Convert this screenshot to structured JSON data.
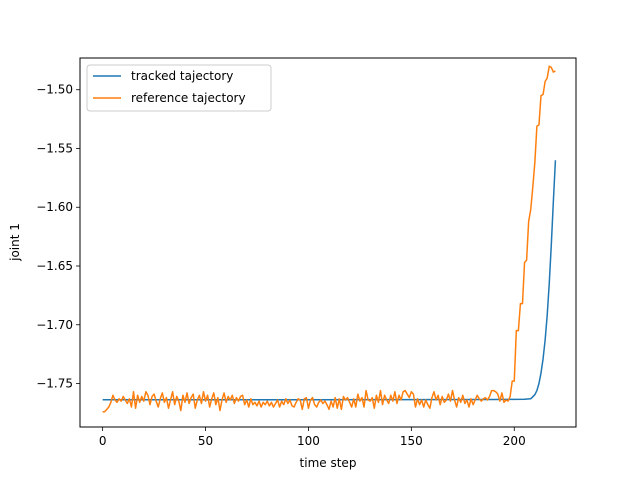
{
  "chart_data": {
    "type": "line",
    "title": "",
    "xlabel": "time step",
    "ylabel": "joint 1",
    "xlim": [
      -11,
      230
    ],
    "ylim": [
      -1.787,
      -1.473
    ],
    "xticks": [
      0,
      50,
      100,
      150,
      200
    ],
    "xtick_labels": [
      "0",
      "50",
      "100",
      "150",
      "200"
    ],
    "yticks": [
      -1.75,
      -1.7,
      -1.65,
      -1.6,
      -1.55,
      -1.5
    ],
    "ytick_labels": [
      "−1.75",
      "−1.70",
      "−1.65",
      "−1.60",
      "−1.55",
      "−1.50"
    ],
    "grid": false,
    "legend_position": "top-left",
    "series": [
      {
        "name": "tracked tajectory",
        "color": "#1f77b4",
        "points": [
          [
            0,
            -1.7638
          ],
          [
            50,
            -1.7638
          ],
          [
            100,
            -1.7638
          ],
          [
            150,
            -1.7637
          ],
          [
            190,
            -1.7636
          ],
          [
            200,
            -1.7635
          ],
          [
            205,
            -1.7634
          ],
          [
            208,
            -1.763
          ],
          [
            210,
            -1.7595
          ],
          [
            211,
            -1.756
          ],
          [
            212,
            -1.75
          ],
          [
            213,
            -1.741
          ],
          [
            214,
            -1.729
          ],
          [
            215,
            -1.713
          ],
          [
            216,
            -1.692
          ],
          [
            217,
            -1.665
          ],
          [
            218,
            -1.632
          ],
          [
            219,
            -1.595
          ],
          [
            220,
            -1.56
          ]
        ]
      },
      {
        "name": "reference tajectory",
        "color": "#ff7f0e",
        "points": [
          [
            0,
            -1.774
          ],
          [
            1,
            -1.774
          ],
          [
            2,
            -1.772
          ],
          [
            3,
            -1.77
          ],
          [
            4,
            -1.766
          ],
          [
            5,
            -1.76
          ],
          [
            6,
            -1.764
          ],
          [
            7,
            -1.766
          ],
          [
            8,
            -1.763
          ],
          [
            9,
            -1.765
          ],
          [
            10,
            -1.761
          ],
          [
            11,
            -1.764
          ],
          [
            12,
            -1.767
          ],
          [
            13,
            -1.763
          ],
          [
            14,
            -1.77
          ],
          [
            15,
            -1.757
          ],
          [
            16,
            -1.771
          ],
          [
            17,
            -1.76
          ],
          [
            18,
            -1.766
          ],
          [
            19,
            -1.761
          ],
          [
            20,
            -1.765
          ],
          [
            21,
            -1.757
          ],
          [
            22,
            -1.76
          ],
          [
            23,
            -1.768
          ],
          [
            24,
            -1.761
          ],
          [
            25,
            -1.759
          ],
          [
            26,
            -1.765
          ],
          [
            27,
            -1.77
          ],
          [
            28,
            -1.763
          ],
          [
            29,
            -1.758
          ],
          [
            30,
            -1.766
          ],
          [
            31,
            -1.762
          ],
          [
            32,
            -1.771
          ],
          [
            33,
            -1.764
          ],
          [
            34,
            -1.757
          ],
          [
            35,
            -1.768
          ],
          [
            36,
            -1.761
          ],
          [
            37,
            -1.765
          ],
          [
            38,
            -1.773
          ],
          [
            39,
            -1.76
          ],
          [
            40,
            -1.766
          ],
          [
            41,
            -1.758
          ],
          [
            42,
            -1.767
          ],
          [
            43,
            -1.762
          ],
          [
            44,
            -1.759
          ],
          [
            45,
            -1.771
          ],
          [
            46,
            -1.764
          ],
          [
            47,
            -1.76
          ],
          [
            48,
            -1.767
          ],
          [
            49,
            -1.757
          ],
          [
            50,
            -1.765
          ],
          [
            51,
            -1.76
          ],
          [
            52,
            -1.77
          ],
          [
            53,
            -1.763
          ],
          [
            54,
            -1.758
          ],
          [
            55,
            -1.768
          ],
          [
            56,
            -1.762
          ],
          [
            57,
            -1.773
          ],
          [
            58,
            -1.764
          ],
          [
            59,
            -1.758
          ],
          [
            60,
            -1.766
          ],
          [
            61,
            -1.761
          ],
          [
            62,
            -1.764
          ],
          [
            63,
            -1.76
          ],
          [
            64,
            -1.767
          ],
          [
            65,
            -1.762
          ],
          [
            66,
            -1.765
          ],
          [
            67,
            -1.761
          ],
          [
            68,
            -1.76
          ],
          [
            69,
            -1.768
          ],
          [
            70,
            -1.764
          ],
          [
            71,
            -1.77
          ],
          [
            72,
            -1.763
          ],
          [
            73,
            -1.768
          ],
          [
            74,
            -1.766
          ],
          [
            75,
            -1.769
          ],
          [
            76,
            -1.765
          ],
          [
            77,
            -1.77
          ],
          [
            78,
            -1.766
          ],
          [
            79,
            -1.768
          ],
          [
            80,
            -1.765
          ],
          [
            81,
            -1.769
          ],
          [
            82,
            -1.766
          ],
          [
            83,
            -1.77
          ],
          [
            84,
            -1.767
          ],
          [
            85,
            -1.764
          ],
          [
            86,
            -1.77
          ],
          [
            87,
            -1.765
          ],
          [
            88,
            -1.768
          ],
          [
            89,
            -1.763
          ],
          [
            90,
            -1.767
          ],
          [
            91,
            -1.764
          ],
          [
            92,
            -1.769
          ],
          [
            93,
            -1.77
          ],
          [
            94,
            -1.766
          ],
          [
            95,
            -1.763
          ],
          [
            96,
            -1.764
          ],
          [
            97,
            -1.772
          ],
          [
            98,
            -1.763
          ],
          [
            99,
            -1.762
          ],
          [
            100,
            -1.771
          ],
          [
            101,
            -1.764
          ],
          [
            102,
            -1.762
          ],
          [
            103,
            -1.768
          ],
          [
            104,
            -1.77
          ],
          [
            105,
            -1.766
          ],
          [
            106,
            -1.764
          ],
          [
            107,
            -1.767
          ],
          [
            108,
            -1.765
          ],
          [
            109,
            -1.768
          ],
          [
            110,
            -1.772
          ],
          [
            111,
            -1.765
          ],
          [
            112,
            -1.77
          ],
          [
            113,
            -1.762
          ],
          [
            114,
            -1.771
          ],
          [
            115,
            -1.763
          ],
          [
            116,
            -1.772
          ],
          [
            117,
            -1.761
          ],
          [
            118,
            -1.764
          ],
          [
            119,
            -1.762
          ],
          [
            120,
            -1.766
          ],
          [
            121,
            -1.77
          ],
          [
            122,
            -1.763
          ],
          [
            123,
            -1.77
          ],
          [
            124,
            -1.759
          ],
          [
            125,
            -1.765
          ],
          [
            126,
            -1.762
          ],
          [
            127,
            -1.77
          ],
          [
            128,
            -1.756
          ],
          [
            129,
            -1.764
          ],
          [
            130,
            -1.765
          ],
          [
            131,
            -1.762
          ],
          [
            132,
            -1.771
          ],
          [
            133,
            -1.76
          ],
          [
            134,
            -1.766
          ],
          [
            135,
            -1.756
          ],
          [
            136,
            -1.768
          ],
          [
            137,
            -1.76
          ],
          [
            138,
            -1.764
          ],
          [
            139,
            -1.767
          ],
          [
            140,
            -1.76
          ],
          [
            141,
            -1.765
          ],
          [
            142,
            -1.757
          ],
          [
            143,
            -1.767
          ],
          [
            144,
            -1.76
          ],
          [
            145,
            -1.764
          ],
          [
            146,
            -1.757
          ],
          [
            147,
            -1.756
          ],
          [
            148,
            -1.759
          ],
          [
            149,
            -1.762
          ],
          [
            150,
            -1.757
          ],
          [
            151,
            -1.759
          ],
          [
            152,
            -1.77
          ],
          [
            153,
            -1.763
          ],
          [
            154,
            -1.768
          ],
          [
            155,
            -1.764
          ],
          [
            156,
            -1.77
          ],
          [
            157,
            -1.764
          ],
          [
            158,
            -1.768
          ],
          [
            159,
            -1.771
          ],
          [
            160,
            -1.762
          ],
          [
            161,
            -1.757
          ],
          [
            162,
            -1.764
          ],
          [
            163,
            -1.76
          ],
          [
            164,
            -1.768
          ],
          [
            165,
            -1.761
          ],
          [
            166,
            -1.766
          ],
          [
            167,
            -1.764
          ],
          [
            168,
            -1.759
          ],
          [
            169,
            -1.765
          ],
          [
            170,
            -1.756
          ],
          [
            171,
            -1.764
          ],
          [
            172,
            -1.77
          ],
          [
            173,
            -1.762
          ],
          [
            174,
            -1.766
          ],
          [
            175,
            -1.76
          ],
          [
            176,
            -1.767
          ],
          [
            177,
            -1.764
          ],
          [
            178,
            -1.77
          ],
          [
            179,
            -1.763
          ],
          [
            180,
            -1.768
          ],
          [
            181,
            -1.764
          ],
          [
            182,
            -1.76
          ],
          [
            183,
            -1.763
          ],
          [
            184,
            -1.765
          ],
          [
            185,
            -1.763
          ],
          [
            186,
            -1.762
          ],
          [
            187,
            -1.764
          ],
          [
            188,
            -1.761
          ],
          [
            189,
            -1.756
          ],
          [
            190,
            -1.756
          ],
          [
            191,
            -1.757
          ],
          [
            192,
            -1.759
          ],
          [
            193,
            -1.765
          ],
          [
            194,
            -1.758
          ],
          [
            195,
            -1.766
          ],
          [
            196,
            -1.764
          ],
          [
            197,
            -1.765
          ],
          [
            198,
            -1.761
          ],
          [
            199,
            -1.748
          ],
          [
            200,
            -1.748
          ],
          [
            201,
            -1.705
          ],
          [
            202,
            -1.705
          ],
          [
            203,
            -1.682
          ],
          [
            204,
            -1.682
          ],
          [
            205,
            -1.647
          ],
          [
            206,
            -1.645
          ],
          [
            207,
            -1.612
          ],
          [
            208,
            -1.602
          ],
          [
            209,
            -1.583
          ],
          [
            210,
            -1.562
          ],
          [
            211,
            -1.531
          ],
          [
            212,
            -1.53
          ],
          [
            213,
            -1.505
          ],
          [
            214,
            -1.504
          ],
          [
            215,
            -1.493
          ],
          [
            216,
            -1.49
          ],
          [
            217,
            -1.48
          ],
          [
            218,
            -1.481
          ],
          [
            219,
            -1.485
          ],
          [
            220,
            -1.484
          ]
        ]
      }
    ]
  }
}
